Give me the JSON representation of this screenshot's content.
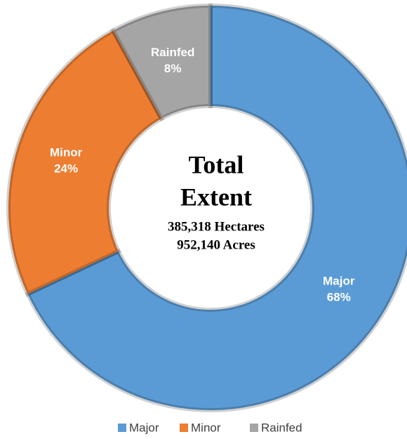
{
  "chart_data": {
    "type": "donut",
    "categories": [
      "Major",
      "Minor",
      "Rainfed"
    ],
    "values": [
      68,
      24,
      8
    ],
    "value_labels": [
      "68%",
      "24%",
      "8%"
    ],
    "colors": [
      "#5b9bd5",
      "#ed7d31",
      "#a5a5a5"
    ],
    "center_title": [
      "Total",
      "Extent"
    ],
    "center_lines": [
      "385,318 Hectares",
      "952,140 Acres"
    ],
    "legend": "bottom"
  }
}
